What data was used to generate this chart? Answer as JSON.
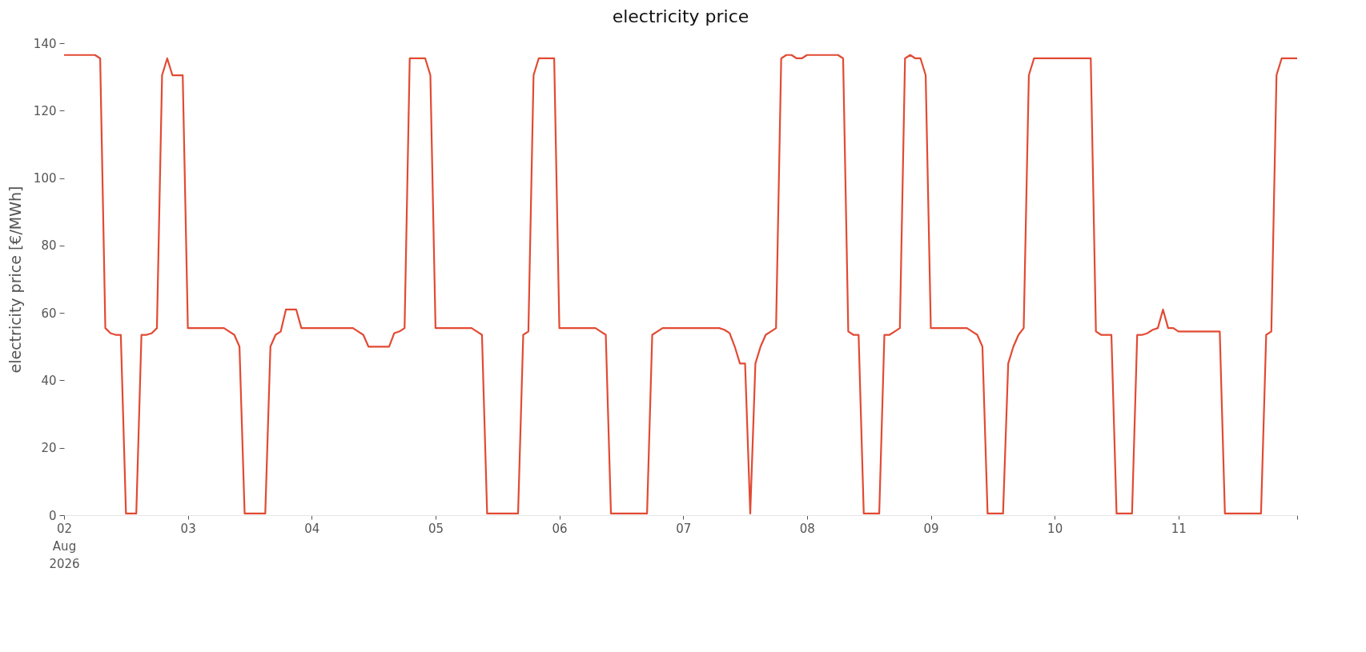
{
  "chart_data": {
    "type": "line",
    "title": "electricity price",
    "ylabel": "electricity price [€/MWh]",
    "xlim": [
      "2026-08-02T00:00",
      "2026-08-11T23:00"
    ],
    "xticks": [
      {
        "value": "2026-08-02",
        "label": "02\nAug\n2026"
      },
      {
        "value": "2026-08-03",
        "label": "03"
      },
      {
        "value": "2026-08-04",
        "label": "04"
      },
      {
        "value": "2026-08-05",
        "label": "05"
      },
      {
        "value": "2026-08-06",
        "label": "06"
      },
      {
        "value": "2026-08-07",
        "label": "07"
      },
      {
        "value": "2026-08-08",
        "label": "08"
      },
      {
        "value": "2026-08-09",
        "label": "09"
      },
      {
        "value": "2026-08-10",
        "label": "10"
      },
      {
        "value": "2026-08-11",
        "label": "11"
      },
      {
        "value": "2026-08-11T23:00",
        "label": null
      }
    ],
    "ylim": [
      0,
      140
    ],
    "yticks": [
      0,
      20,
      40,
      60,
      80,
      100,
      120,
      140
    ],
    "grid": false,
    "x": [
      "2026-08-02T00:00",
      "2026-08-02T01:00",
      "2026-08-02T02:00",
      "2026-08-02T03:00",
      "2026-08-02T04:00",
      "2026-08-02T05:00",
      "2026-08-02T06:00",
      "2026-08-02T07:00",
      "2026-08-02T08:00",
      "2026-08-02T09:00",
      "2026-08-02T10:00",
      "2026-08-02T11:00",
      "2026-08-02T12:00",
      "2026-08-02T13:00",
      "2026-08-02T14:00",
      "2026-08-02T15:00",
      "2026-08-02T16:00",
      "2026-08-02T17:00",
      "2026-08-02T18:00",
      "2026-08-02T19:00",
      "2026-08-02T20:00",
      "2026-08-02T21:00",
      "2026-08-02T22:00",
      "2026-08-02T23:00",
      "2026-08-03T00:00",
      "2026-08-03T01:00",
      "2026-08-03T02:00",
      "2026-08-03T03:00",
      "2026-08-03T04:00",
      "2026-08-03T05:00",
      "2026-08-03T06:00",
      "2026-08-03T07:00",
      "2026-08-03T08:00",
      "2026-08-03T09:00",
      "2026-08-03T10:00",
      "2026-08-03T11:00",
      "2026-08-03T12:00",
      "2026-08-03T13:00",
      "2026-08-03T14:00",
      "2026-08-03T15:00",
      "2026-08-03T16:00",
      "2026-08-03T17:00",
      "2026-08-03T18:00",
      "2026-08-03T19:00",
      "2026-08-03T20:00",
      "2026-08-03T21:00",
      "2026-08-03T22:00",
      "2026-08-03T23:00",
      "2026-08-04T00:00",
      "2026-08-04T01:00",
      "2026-08-04T02:00",
      "2026-08-04T03:00",
      "2026-08-04T04:00",
      "2026-08-04T05:00",
      "2026-08-04T06:00",
      "2026-08-04T07:00",
      "2026-08-04T08:00",
      "2026-08-04T09:00",
      "2026-08-04T10:00",
      "2026-08-04T11:00",
      "2026-08-04T12:00",
      "2026-08-04T13:00",
      "2026-08-04T14:00",
      "2026-08-04T15:00",
      "2026-08-04T16:00",
      "2026-08-04T17:00",
      "2026-08-04T18:00",
      "2026-08-04T19:00",
      "2026-08-04T20:00",
      "2026-08-04T21:00",
      "2026-08-04T22:00",
      "2026-08-04T23:00",
      "2026-08-05T00:00",
      "2026-08-05T01:00",
      "2026-08-05T02:00",
      "2026-08-05T03:00",
      "2026-08-05T04:00",
      "2026-08-05T05:00",
      "2026-08-05T06:00",
      "2026-08-05T07:00",
      "2026-08-05T08:00",
      "2026-08-05T09:00",
      "2026-08-05T10:00",
      "2026-08-05T11:00",
      "2026-08-05T12:00",
      "2026-08-05T13:00",
      "2026-08-05T14:00",
      "2026-08-05T15:00",
      "2026-08-05T16:00",
      "2026-08-05T17:00",
      "2026-08-05T18:00",
      "2026-08-05T19:00",
      "2026-08-05T20:00",
      "2026-08-05T21:00",
      "2026-08-05T22:00",
      "2026-08-05T23:00",
      "2026-08-06T00:00",
      "2026-08-06T01:00",
      "2026-08-06T02:00",
      "2026-08-06T03:00",
      "2026-08-06T04:00",
      "2026-08-06T05:00",
      "2026-08-06T06:00",
      "2026-08-06T07:00",
      "2026-08-06T08:00",
      "2026-08-06T09:00",
      "2026-08-06T10:00",
      "2026-08-06T11:00",
      "2026-08-06T12:00",
      "2026-08-06T13:00",
      "2026-08-06T14:00",
      "2026-08-06T15:00",
      "2026-08-06T16:00",
      "2026-08-06T17:00",
      "2026-08-06T18:00",
      "2026-08-06T19:00",
      "2026-08-06T20:00",
      "2026-08-06T21:00",
      "2026-08-06T22:00",
      "2026-08-06T23:00",
      "2026-08-07T00:00",
      "2026-08-07T01:00",
      "2026-08-07T02:00",
      "2026-08-07T03:00",
      "2026-08-07T04:00",
      "2026-08-07T05:00",
      "2026-08-07T06:00",
      "2026-08-07T07:00",
      "2026-08-07T08:00",
      "2026-08-07T09:00",
      "2026-08-07T10:00",
      "2026-08-07T11:00",
      "2026-08-07T12:00",
      "2026-08-07T13:00",
      "2026-08-07T14:00",
      "2026-08-07T15:00",
      "2026-08-07T16:00",
      "2026-08-07T17:00",
      "2026-08-07T18:00",
      "2026-08-07T19:00",
      "2026-08-07T20:00",
      "2026-08-07T21:00",
      "2026-08-07T22:00",
      "2026-08-07T23:00",
      "2026-08-08T00:00",
      "2026-08-08T01:00",
      "2026-08-08T02:00",
      "2026-08-08T03:00",
      "2026-08-08T04:00",
      "2026-08-08T05:00",
      "2026-08-08T06:00",
      "2026-08-08T07:00",
      "2026-08-08T08:00",
      "2026-08-08T09:00",
      "2026-08-08T10:00",
      "2026-08-08T11:00",
      "2026-08-08T12:00",
      "2026-08-08T13:00",
      "2026-08-08T14:00",
      "2026-08-08T15:00",
      "2026-08-08T16:00",
      "2026-08-08T17:00",
      "2026-08-08T18:00",
      "2026-08-08T19:00",
      "2026-08-08T20:00",
      "2026-08-08T21:00",
      "2026-08-08T22:00",
      "2026-08-08T23:00",
      "2026-08-09T00:00",
      "2026-08-09T01:00",
      "2026-08-09T02:00",
      "2026-08-09T03:00",
      "2026-08-09T04:00",
      "2026-08-09T05:00",
      "2026-08-09T06:00",
      "2026-08-09T07:00",
      "2026-08-09T08:00",
      "2026-08-09T09:00",
      "2026-08-09T10:00",
      "2026-08-09T11:00",
      "2026-08-09T12:00",
      "2026-08-09T13:00",
      "2026-08-09T14:00",
      "2026-08-09T15:00",
      "2026-08-09T16:00",
      "2026-08-09T17:00",
      "2026-08-09T18:00",
      "2026-08-09T19:00",
      "2026-08-09T20:00",
      "2026-08-09T21:00",
      "2026-08-09T22:00",
      "2026-08-09T23:00",
      "2026-08-10T00:00",
      "2026-08-10T01:00",
      "2026-08-10T02:00",
      "2026-08-10T03:00",
      "2026-08-10T04:00",
      "2026-08-10T05:00",
      "2026-08-10T06:00",
      "2026-08-10T07:00",
      "2026-08-10T08:00",
      "2026-08-10T09:00",
      "2026-08-10T10:00",
      "2026-08-10T11:00",
      "2026-08-10T12:00",
      "2026-08-10T13:00",
      "2026-08-10T14:00",
      "2026-08-10T15:00",
      "2026-08-10T16:00",
      "2026-08-10T17:00",
      "2026-08-10T18:00",
      "2026-08-10T19:00",
      "2026-08-10T20:00",
      "2026-08-10T21:00",
      "2026-08-10T22:00",
      "2026-08-10T23:00",
      "2026-08-11T00:00",
      "2026-08-11T01:00",
      "2026-08-11T02:00",
      "2026-08-11T03:00",
      "2026-08-11T04:00",
      "2026-08-11T05:00",
      "2026-08-11T06:00",
      "2026-08-11T07:00",
      "2026-08-11T08:00",
      "2026-08-11T09:00",
      "2026-08-11T10:00",
      "2026-08-11T11:00",
      "2026-08-11T12:00",
      "2026-08-11T13:00",
      "2026-08-11T14:00",
      "2026-08-11T15:00",
      "2026-08-11T16:00",
      "2026-08-11T17:00",
      "2026-08-11T18:00",
      "2026-08-11T19:00",
      "2026-08-11T20:00",
      "2026-08-11T21:00",
      "2026-08-11T22:00",
      "2026-08-11T23:00"
    ],
    "series": [
      {
        "color": "#e24a33",
        "values": [
          136.5,
          136.5,
          136.5,
          136.5,
          136.5,
          136.5,
          136.5,
          135.5,
          55.5,
          54,
          53.5,
          53.5,
          0.5,
          0.5,
          0.5,
          53.5,
          53.5,
          54,
          55.5,
          130.5,
          135.5,
          130.5,
          130.5,
          130.5,
          55.5,
          55.5,
          55.5,
          55.5,
          55.5,
          55.5,
          55.5,
          55.5,
          54.5,
          53.5,
          50,
          0.5,
          0.5,
          0.5,
          0.5,
          0.5,
          50,
          53.5,
          54.5,
          61,
          61,
          61,
          55.5,
          55.5,
          55.5,
          55.5,
          55.5,
          55.5,
          55.5,
          55.5,
          55.5,
          55.5,
          55.5,
          54.5,
          53.5,
          50,
          50,
          50,
          50,
          50,
          54,
          54.5,
          55.5,
          135.5,
          135.5,
          135.5,
          135.5,
          130.5,
          55.5,
          55.5,
          55.5,
          55.5,
          55.5,
          55.5,
          55.5,
          55.5,
          54.5,
          53.5,
          0.5,
          0.5,
          0.5,
          0.5,
          0.5,
          0.5,
          0.5,
          53.5,
          54.5,
          130.5,
          135.5,
          135.5,
          135.5,
          135.5,
          55.5,
          55.5,
          55.5,
          55.5,
          55.5,
          55.5,
          55.5,
          55.5,
          54.5,
          53.5,
          0.5,
          0.5,
          0.5,
          0.5,
          0.5,
          0.5,
          0.5,
          0.5,
          53.5,
          54.5,
          55.5,
          55.5,
          55.5,
          55.5,
          55.5,
          55.5,
          55.5,
          55.5,
          55.5,
          55.5,
          55.5,
          55.5,
          55,
          54,
          50,
          45,
          45,
          0.5,
          45,
          50,
          53.5,
          54.5,
          55.5,
          135.5,
          136.5,
          136.5,
          135.5,
          135.5,
          136.5,
          136.5,
          136.5,
          136.5,
          136.5,
          136.5,
          136.5,
          135.5,
          54.5,
          53.5,
          53.5,
          0.5,
          0.5,
          0.5,
          0.5,
          53.5,
          53.5,
          54.5,
          55.5,
          135.5,
          136.5,
          135.5,
          135.5,
          130.5,
          55.5,
          55.5,
          55.5,
          55.5,
          55.5,
          55.5,
          55.5,
          55.5,
          54.5,
          53.5,
          50,
          0.5,
          0.5,
          0.5,
          0.5,
          45,
          50,
          53.5,
          55.5,
          130.5,
          135.5,
          135.5,
          135.5,
          135.5,
          135.5,
          135.5,
          135.5,
          135.5,
          135.5,
          135.5,
          135.5,
          135.5,
          54.5,
          53.5,
          53.5,
          53.5,
          0.5,
          0.5,
          0.5,
          0.5,
          53.5,
          53.5,
          54,
          55,
          55.5,
          61,
          55.5,
          55.5,
          54.5,
          54.5,
          54.5,
          54.5,
          54.5,
          54.5,
          54.5,
          54.5,
          54.5,
          0.5,
          0.5,
          0.5,
          0.5,
          0.5,
          0.5,
          0.5,
          0.5,
          53.5,
          54.5,
          130.5,
          135.5,
          135.5,
          135.5,
          135.5
        ]
      }
    ]
  }
}
